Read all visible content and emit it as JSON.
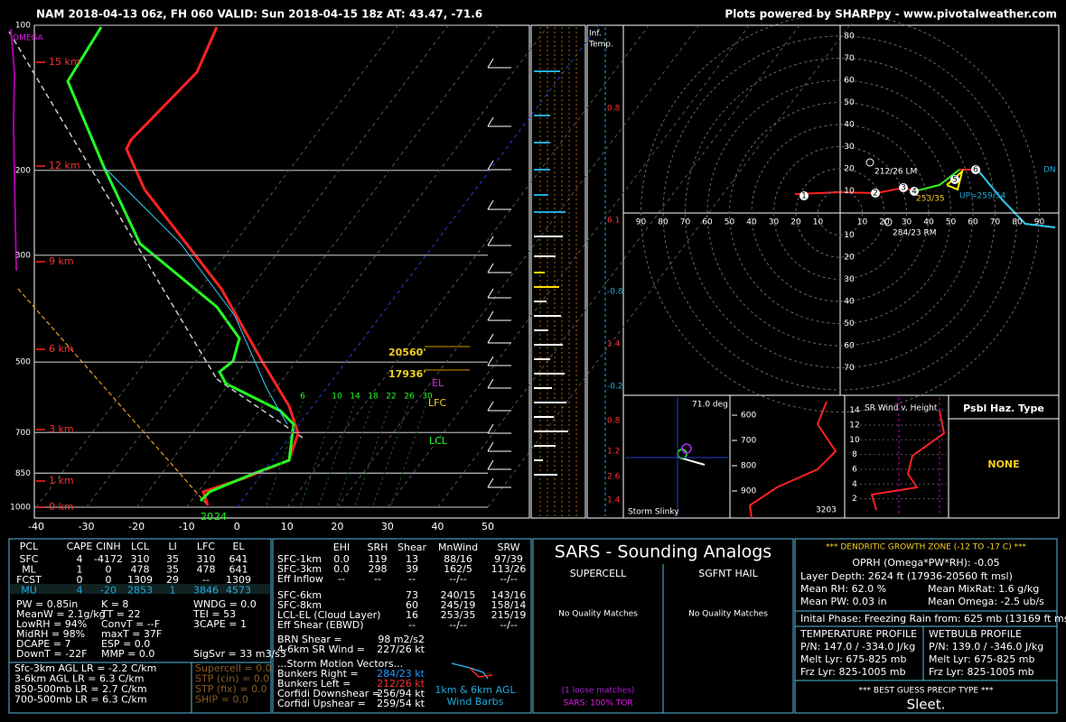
{
  "header": {
    "left": "NAM 2018-04-13 06z, FH 060   VALID: Sun 2018-04-15 18z   AT: 43.47, -71.6",
    "right": "Plots powered by SHARPpy - www.pivotalweather.com"
  },
  "skewt": {
    "pressure_ticks": [
      100,
      200,
      300,
      500,
      700,
      850,
      1000
    ],
    "height_labels": [
      "15 km",
      "12 km",
      "9 km",
      "6 km",
      "3 km",
      "1 km",
      "0 km"
    ],
    "temp_ticks": [
      -40,
      -30,
      -20,
      -10,
      0,
      10,
      20,
      30,
      40,
      50
    ],
    "omega": "OMEGA",
    "dgz_top": "20560'",
    "dgz_bottom": "17936'",
    "el": "EL",
    "lfc": "LFC",
    "lcl": "LCL",
    "sfc_labels": [
      "20",
      "24"
    ],
    "mixing_ratio_labels": [
      "6",
      "10",
      "14",
      "18",
      "22",
      "26",
      "30"
    ]
  },
  "inferred_temp": {
    "title": "Inf.",
    "subtitle": "Temp.",
    "labels": [
      "0.8",
      "6.1",
      "-0.8",
      "1.4",
      "-0.2",
      "0.8",
      "1.2",
      "2.6",
      "1.4"
    ]
  },
  "hodograph": {
    "rings": [
      10,
      20,
      30,
      40,
      50,
      60,
      70,
      80,
      90
    ],
    "lm": "212/26 LM",
    "rm": "284/23 RM",
    "left_mover_cloud": "253/35",
    "up": "UP=259/54",
    "dn": "DN",
    "points": [
      "1",
      "2",
      "3",
      "4",
      "5",
      "6"
    ]
  },
  "storm_slinky": {
    "angle": "71.0 deg",
    "title": "Storm Slinky"
  },
  "theta_e": {
    "pressure_ticks": [
      600,
      700,
      800,
      900
    ],
    "value": "3203"
  },
  "sr_wind": {
    "heights": [
      2,
      4,
      6,
      8,
      10,
      12,
      14
    ],
    "title": "SR Wind v. Height"
  },
  "hazard": {
    "title": "Psbl Haz. Type",
    "value": "NONE"
  },
  "parcel_table": {
    "header": [
      "PCL",
      "CAPE",
      "CINH",
      "LCL",
      "LI",
      "LFC",
      "EL"
    ],
    "rows": [
      [
        "SFC",
        "4",
        "-4172",
        "310",
        "35",
        "310",
        "641"
      ],
      [
        "ML",
        "1",
        "0",
        "478",
        "35",
        "478",
        "641"
      ],
      [
        "FCST",
        "0",
        "0",
        "1309",
        "29",
        "--",
        "1309"
      ],
      [
        "MU",
        "4",
        "-20",
        "2853",
        "1",
        "3846",
        "4573"
      ]
    ]
  },
  "thermo_indices": [
    [
      "PW = 0.85in",
      "K = 8",
      "WNDG = 0.0"
    ],
    [
      "MeanW = 2.1g/kg",
      "TT = 22",
      "TEI = 53"
    ],
    [
      "LowRH = 94%",
      "ConvT = --F",
      "3CAPE = 1"
    ],
    [
      "MidRH = 98%",
      "maxT = 37F"
    ],
    [
      "DCAPE = 7",
      "ESP = 0.0"
    ],
    [
      "DownT = -22F",
      "MMP = 0.0",
      "SigSvr = 33 m3/s3"
    ]
  ],
  "lapse_rates": [
    "Sfc-3km AGL LR = -2.2 C/km",
    "3-6km AGL LR = 6.3 C/km",
    "850-500mb LR = 2.7 C/km",
    "700-500mb LR = 6.3 C/km"
  ],
  "severe_indices": [
    "Supercell = 0.0",
    "STP (cin) = 0.0",
    "STP (fix) = 0.0",
    "SHIP = 0.0"
  ],
  "kinematics": {
    "header": [
      "EHI",
      "SRH",
      "Shear",
      "MnWind",
      "SRW"
    ],
    "rows": [
      [
        "SFC-1km",
        "0.0",
        "119",
        "13",
        "88/16",
        "97/39"
      ],
      [
        "SFC-3km",
        "0.0",
        "298",
        "39",
        "162/5",
        "113/26"
      ],
      [
        "Eff Inflow",
        "--",
        "--",
        "--",
        "--/--",
        "--/--"
      ]
    ],
    "deep_rows": [
      [
        "SFC-6km",
        "73",
        "240/15",
        "143/16"
      ],
      [
        "SFC-8km",
        "60",
        "245/19",
        "158/14"
      ],
      [
        "LCL-EL (Cloud Layer)",
        "16",
        "253/35",
        "215/19"
      ],
      [
        "Eff Shear (EBWD)",
        "--",
        "--/--",
        "--/--"
      ]
    ],
    "extra": [
      [
        "BRN Shear =",
        "98 m2/s2"
      ],
      [
        "4-6km SR Wind =",
        "227/26 kt"
      ]
    ],
    "vectors_title": "...Storm Motion Vectors...",
    "vectors": [
      [
        "Bunkers Right =",
        "284/23 kt"
      ],
      [
        "Bunkers Left =",
        "212/26 kt"
      ],
      [
        "Corfidi Downshear =",
        "256/94 kt"
      ],
      [
        "Corfidi Upshear =",
        "259/54 kt"
      ]
    ],
    "barbs_title": "1km & 6km AGL",
    "barbs_subtitle": "Wind Barbs"
  },
  "sars": {
    "title": "SARS - Sounding Analogs",
    "supercell": "SUPERCELL",
    "hail": "SGFNT HAIL",
    "supercell_result": "No Quality Matches",
    "hail_result": "No Quality Matches",
    "loose": "(1 loose matches)",
    "tor": "SARS: 100% TOR"
  },
  "dgz": {
    "title": "*** DENDRITIC GROWTH ZONE (-12 TO -17 C) ***",
    "oprh": "OPRH (Omega*PW*RH): -0.05",
    "depth": "Layer Depth: 2624 ft (17936-20560 ft msl)",
    "mean_rh": "Mean RH: 62.0 %",
    "mean_mixrat": "Mean MixRat: 1.6 g/kg",
    "mean_pw": "Mean PW: 0.03 in",
    "mean_omega": "Mean Omega: -2.5 ub/s",
    "phase": "Inital Phase: Freezing Rain from: 625 mb (13169 ft msl; -",
    "temp_profile": {
      "title": "TEMPERATURE PROFILE",
      "pn": "P/N: 147.0 / -334.0 J/kg",
      "melt": "Melt Lyr: 675-825 mb",
      "frz": "Frz Lyr: 825-1005 mb"
    },
    "wetbulb_profile": {
      "title": "WETBULB PROFILE",
      "pn": "P/N: 139.0 / -346.0 J/kg",
      "melt": "Melt Lyr: 675-825 mb",
      "frz": "Frz Lyr: 825-1005 mb"
    },
    "precip_title": "*** BEST GUESS PRECIP TYPE ***",
    "precip": "Sleet."
  }
}
